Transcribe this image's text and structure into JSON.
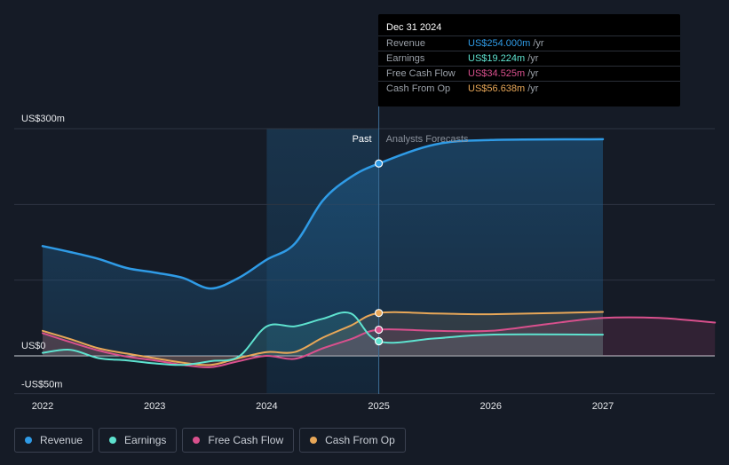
{
  "tooltip": {
    "date": "Dec 31 2024",
    "rows": [
      {
        "label": "Revenue",
        "value": "US$254.000m",
        "unit": "/yr",
        "color": "#2f9be6"
      },
      {
        "label": "Earnings",
        "value": "US$19.224m",
        "unit": "/yr",
        "color": "#5ee2cf"
      },
      {
        "label": "Free Cash Flow",
        "value": "US$34.525m",
        "unit": "/yr",
        "color": "#d9508d"
      },
      {
        "label": "Cash From Op",
        "value": "US$56.638m",
        "unit": "/yr",
        "color": "#e8a758"
      }
    ]
  },
  "labels": {
    "past": "Past",
    "forecast": "Analysts Forecasts"
  },
  "legend": [
    {
      "label": "Revenue",
      "color": "#2f9be6"
    },
    {
      "label": "Earnings",
      "color": "#5ee2cf"
    },
    {
      "label": "Free Cash Flow",
      "color": "#d9508d"
    },
    {
      "label": "Cash From Op",
      "color": "#e8a758"
    }
  ],
  "chart_data": {
    "type": "line",
    "x_range": [
      2021.9,
      2028.0
    ],
    "y_range": [
      -50,
      300
    ],
    "y_tick_labels": [
      {
        "value": 300,
        "label": "US$300m"
      },
      {
        "value": 0,
        "label": "US$0"
      },
      {
        "value": -50,
        "label": "-US$50m"
      }
    ],
    "x_ticks": [
      {
        "value": 2022,
        "label": "2022"
      },
      {
        "value": 2023,
        "label": "2023"
      },
      {
        "value": 2024,
        "label": "2024"
      },
      {
        "value": 2025,
        "label": "2025"
      },
      {
        "value": 2026,
        "label": "2026"
      },
      {
        "value": 2027,
        "label": "2027"
      }
    ],
    "past_divider": 2025.0,
    "shaded_start": 2024.0,
    "series": [
      {
        "name": "Revenue",
        "color": "#2f9be6",
        "points": [
          [
            2022.0,
            145
          ],
          [
            2022.25,
            137
          ],
          [
            2022.5,
            128
          ],
          [
            2022.75,
            116
          ],
          [
            2023.0,
            110
          ],
          [
            2023.25,
            103
          ],
          [
            2023.5,
            89
          ],
          [
            2023.75,
            103
          ],
          [
            2024.0,
            127
          ],
          [
            2024.25,
            148
          ],
          [
            2024.5,
            205
          ],
          [
            2024.75,
            236
          ],
          [
            2025.0,
            254
          ],
          [
            2025.5,
            279
          ],
          [
            2026.0,
            285
          ],
          [
            2027.0,
            286
          ]
        ]
      },
      {
        "name": "Earnings",
        "color": "#5ee2cf",
        "points": [
          [
            2022.0,
            4
          ],
          [
            2022.25,
            8
          ],
          [
            2022.5,
            -3
          ],
          [
            2022.75,
            -6
          ],
          [
            2023.0,
            -10
          ],
          [
            2023.25,
            -12
          ],
          [
            2023.5,
            -7
          ],
          [
            2023.75,
            -1
          ],
          [
            2024.0,
            39
          ],
          [
            2024.25,
            39
          ],
          [
            2024.5,
            49
          ],
          [
            2024.75,
            56
          ],
          [
            2025.0,
            19.224
          ],
          [
            2025.5,
            23
          ],
          [
            2026.0,
            28
          ],
          [
            2027.0,
            28
          ]
        ]
      },
      {
        "name": "Free Cash Flow",
        "color": "#d9508d",
        "points": [
          [
            2022.0,
            30
          ],
          [
            2022.25,
            18
          ],
          [
            2022.5,
            7
          ],
          [
            2022.75,
            -1
          ],
          [
            2023.0,
            -6
          ],
          [
            2023.25,
            -12
          ],
          [
            2023.5,
            -15
          ],
          [
            2023.75,
            -7
          ],
          [
            2024.0,
            0
          ],
          [
            2024.25,
            -4
          ],
          [
            2024.5,
            10
          ],
          [
            2024.75,
            22
          ],
          [
            2025.0,
            34.525
          ],
          [
            2025.5,
            33
          ],
          [
            2026.0,
            33
          ],
          [
            2026.5,
            42
          ],
          [
            2027.0,
            50
          ],
          [
            2027.5,
            50
          ],
          [
            2028.0,
            44
          ]
        ]
      },
      {
        "name": "Cash From Op",
        "color": "#e8a758",
        "points": [
          [
            2022.0,
            33
          ],
          [
            2022.25,
            22
          ],
          [
            2022.5,
            10
          ],
          [
            2022.75,
            3
          ],
          [
            2023.0,
            -3
          ],
          [
            2023.25,
            -9
          ],
          [
            2023.5,
            -12
          ],
          [
            2023.75,
            -3
          ],
          [
            2024.0,
            5
          ],
          [
            2024.25,
            5
          ],
          [
            2024.5,
            24
          ],
          [
            2024.75,
            40
          ],
          [
            2025.0,
            56.638
          ],
          [
            2025.5,
            56
          ],
          [
            2026.0,
            55
          ],
          [
            2027.0,
            58
          ]
        ]
      }
    ],
    "highlight_x": 2025.0,
    "grid": true
  }
}
